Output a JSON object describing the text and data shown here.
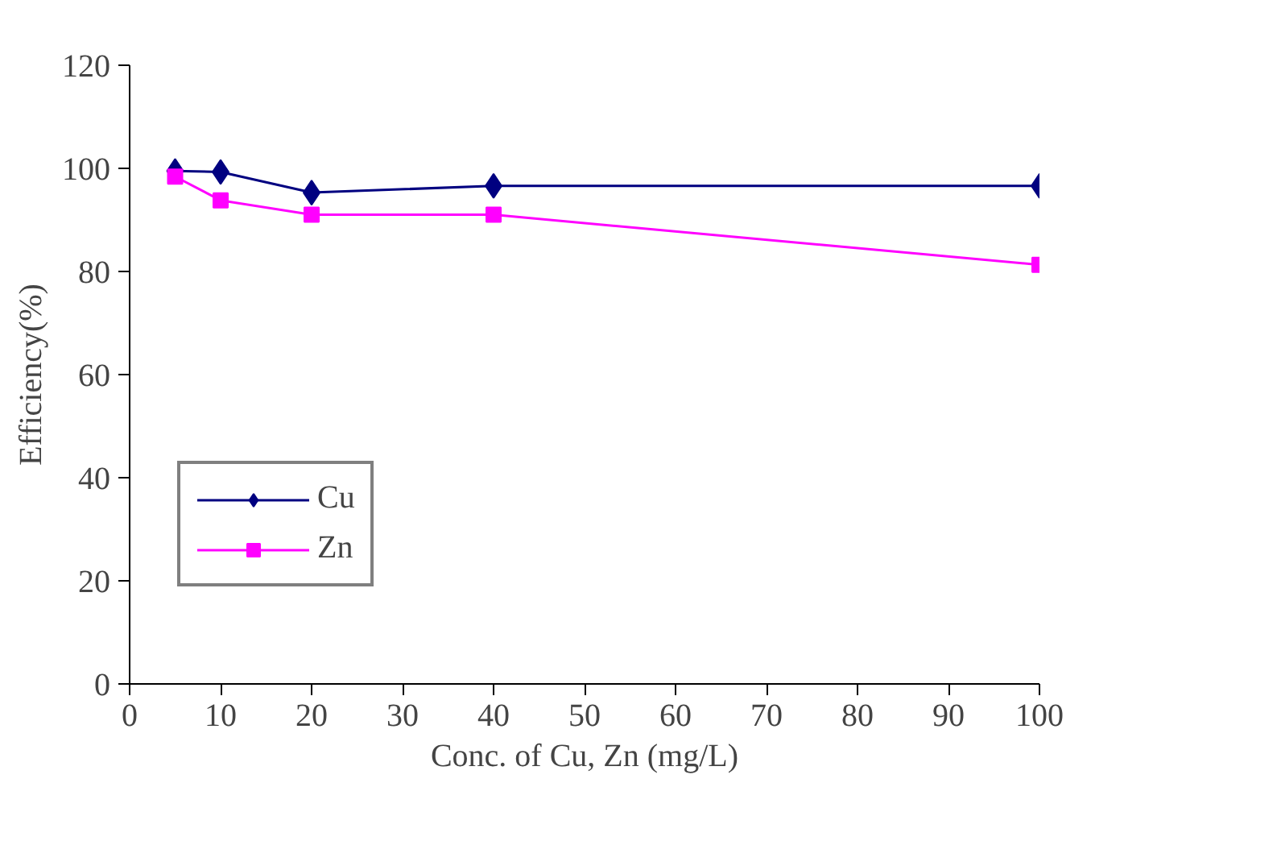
{
  "chart_data": {
    "type": "line",
    "xlabel": "Conc. of Cu, Zn (mg/L)",
    "ylabel": "Efficiency(%)",
    "x": [
      5,
      10,
      20,
      40,
      100
    ],
    "series": [
      {
        "name": "Cu",
        "color": "#000080",
        "marker": "diamond",
        "values": [
          99.5,
          99.3,
          95.3,
          96.6,
          96.6
        ]
      },
      {
        "name": "Zn",
        "color": "#ff00ff",
        "marker": "square",
        "values": [
          98.4,
          93.8,
          91,
          91,
          81.3
        ]
      }
    ],
    "xlim": [
      0,
      100
    ],
    "xticks": [
      0,
      10,
      20,
      30,
      40,
      50,
      60,
      70,
      80,
      90,
      100
    ],
    "ylim": [
      0,
      120
    ],
    "yticks": [
      0,
      20,
      40,
      60,
      80,
      100,
      120
    ],
    "grid": false,
    "legend": "left",
    "line_style": "solid"
  }
}
